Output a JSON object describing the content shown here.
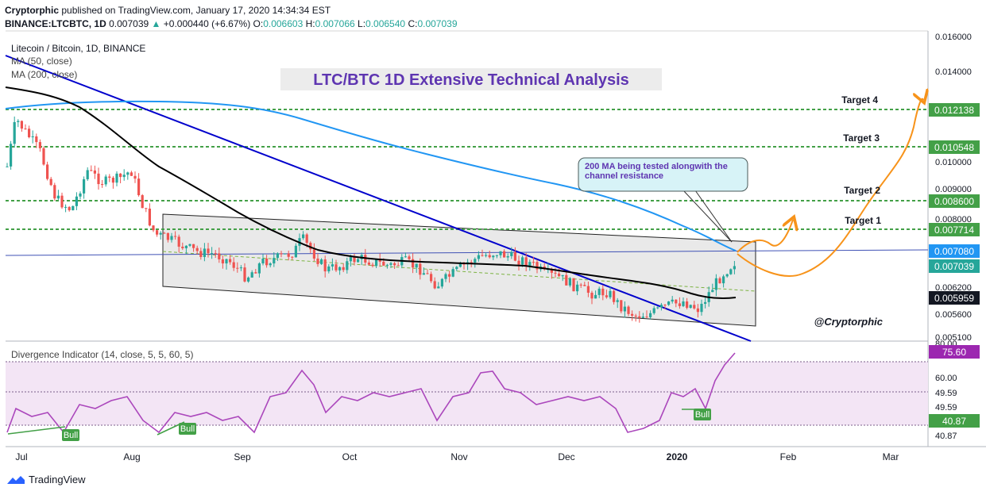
{
  "header": {
    "author": "Cryptorphic",
    "published": "published on TradingView.com, January 17, 2020 14:34:34 EST",
    "symbol": "BINANCE:LTCBTC, 1D",
    "last": "0.007039",
    "change": "+0.000440 (+6.67%)",
    "o_label": "O:",
    "o": "0.006603",
    "h_label": "H:",
    "h": "0.007066",
    "l_label": "L:",
    "l": "0.006540",
    "c_label": "C:",
    "c": "0.007039"
  },
  "legend": {
    "title": "Litecoin / Bitcoin, 1D, BINANCE",
    "ma50": "MA (50, close)",
    "ma200": "MA (200, close)"
  },
  "chart_title": "LTC/BTC 1D Extensive Technical Analysis",
  "callout": "200 MA being tested alongwith the channel resistance",
  "watermark": "@Cryptorphic",
  "footer_brand": "TradingView",
  "colors": {
    "up": "#26a69a",
    "down": "#ef5350",
    "ma50": "#000000",
    "ma200": "#2196f3",
    "trendline": "#0000cc",
    "target_line": "#43a047",
    "projection": "#f7931a",
    "indicator": "#ab47bc",
    "title_text": "#5e35b1"
  },
  "chart_data": [
    {
      "type": "candlestick",
      "title": "LTC/BTC 1D Extensive Technical Analysis",
      "ylim": [
        0.0051,
        0.016
      ],
      "y_scale": "log",
      "y_ticks": [
        "0.016000",
        "0.014000",
        "0.012138",
        "0.010548",
        "0.010000",
        "0.009000",
        "0.008600",
        "0.008000",
        "0.007714",
        "0.007080",
        "0.007039",
        "0.006200",
        "0.005959",
        "0.005600",
        "0.005100"
      ],
      "x_ticks": [
        "Jul",
        "Aug",
        "Sep",
        "Oct",
        "Nov",
        "Dec",
        "2020",
        "Feb",
        "Mar"
      ],
      "price_labels": [
        {
          "value": "0.012138",
          "kind": "target"
        },
        {
          "value": "0.010548",
          "kind": "target"
        },
        {
          "value": "0.008600",
          "kind": "target"
        },
        {
          "value": "0.007714",
          "kind": "target"
        },
        {
          "value": "0.007080",
          "kind": "ma200"
        },
        {
          "value": "0.007039",
          "kind": "price"
        },
        {
          "value": "0.005959",
          "kind": "ma50"
        }
      ],
      "targets": [
        {
          "name": "Target 4",
          "value": 0.012138
        },
        {
          "name": "Target 3",
          "value": 0.010548
        },
        {
          "name": "Target 2",
          "value": 0.0086
        },
        {
          "name": "Target 1",
          "value": 0.007714
        }
      ],
      "last_close": 0.007039,
      "ma50_last": 0.005959,
      "ma200_last": 0.00708,
      "grid": false,
      "legend_position": "top-left"
    },
    {
      "type": "line",
      "title": "Divergence Indicator (14, close, 5, 5, 60, 5)",
      "y_ticks": [
        "80.00",
        "60.00",
        "49.59",
        "49.59",
        "40.87",
        "40.87"
      ],
      "band": [
        40.87,
        75.6
      ],
      "last": "75.60",
      "value_labels": [
        "75.60",
        "40.87"
      ],
      "annotations": [
        "Bull",
        "Bull",
        "Bull"
      ]
    }
  ]
}
